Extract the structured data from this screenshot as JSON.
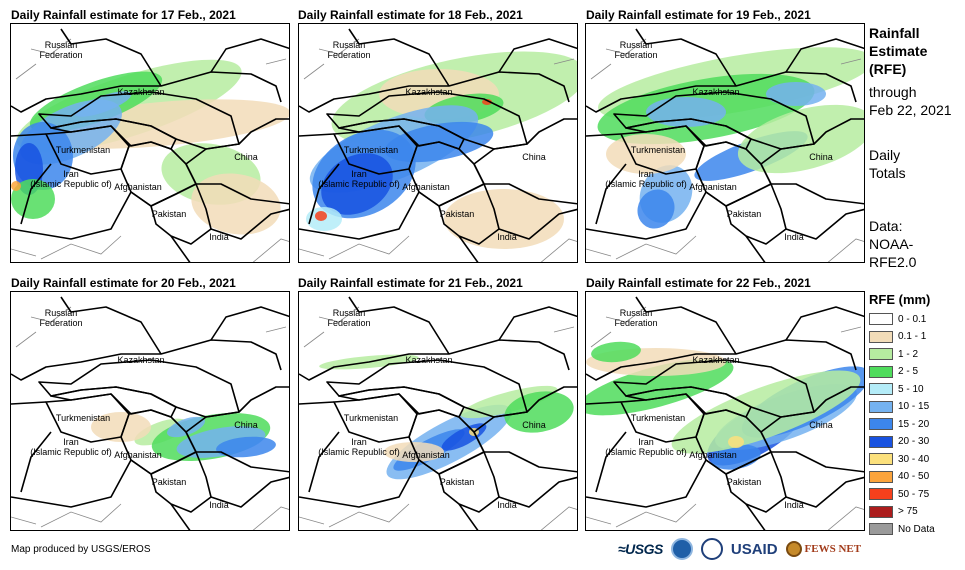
{
  "panels": [
    {
      "title": "Daily Rainfall estimate for 17 Feb., 2021",
      "day": 0
    },
    {
      "title": "Daily Rainfall estimate for 18 Feb., 2021",
      "day": 1
    },
    {
      "title": "Daily Rainfall estimate for 19 Feb., 2021",
      "day": 2
    },
    {
      "title": "Daily Rainfall estimate for 20 Feb., 2021",
      "day": 3
    },
    {
      "title": "Daily Rainfall estimate for 21 Feb., 2021",
      "day": 4
    },
    {
      "title": "Daily Rainfall estimate for 22 Feb., 2021",
      "day": 5
    }
  ],
  "country_labels": {
    "russia": "Russian\nFederation",
    "kazakhstan": "Kazakhstan",
    "turkmenistan": "Turkmenistan",
    "iran": "Iran\n(Islamic Republic of)",
    "afghanistan": "Afghanistan",
    "pakistan": "Pakistan",
    "china": "China",
    "india": "India"
  },
  "sidebar": {
    "title_line1": "Rainfall",
    "title_line2": "Estimate",
    "title_line3": "(RFE)",
    "through": "through",
    "through_date": "Feb 22, 2021",
    "totals_line1": "Daily",
    "totals_line2": "Totals",
    "data_line1": "Data:",
    "data_line2": "NOAA-",
    "data_line3": "RFE2.0"
  },
  "legend": {
    "title": "RFE (mm)",
    "items": [
      {
        "label": "0 - 0.1",
        "color": "#ffffff"
      },
      {
        "label": "0.1 - 1",
        "color": "#f2dcb8"
      },
      {
        "label": "1 - 2",
        "color": "#b6eca0"
      },
      {
        "label": "2 - 5",
        "color": "#4fdc5c"
      },
      {
        "label": "5 - 10",
        "color": "#b4ecf8"
      },
      {
        "label": "10 - 15",
        "color": "#74b2f0"
      },
      {
        "label": "15 - 20",
        "color": "#3c86ec"
      },
      {
        "label": "20 - 30",
        "color": "#1852e0"
      },
      {
        "label": "30 - 40",
        "color": "#fbe07c"
      },
      {
        "label": "40 - 50",
        "color": "#fba43c"
      },
      {
        "label": "50 - 75",
        "color": "#f5401c"
      },
      {
        "label": "> 75",
        "color": "#ac1c1c"
      },
      {
        "label": "No Data",
        "color": "#9a9a9a"
      }
    ]
  },
  "credit": "Map produced by USGS/EROS",
  "logos": {
    "usgs": "≈USGS",
    "usaid": "USAID",
    "fews": "FEWS NET"
  }
}
